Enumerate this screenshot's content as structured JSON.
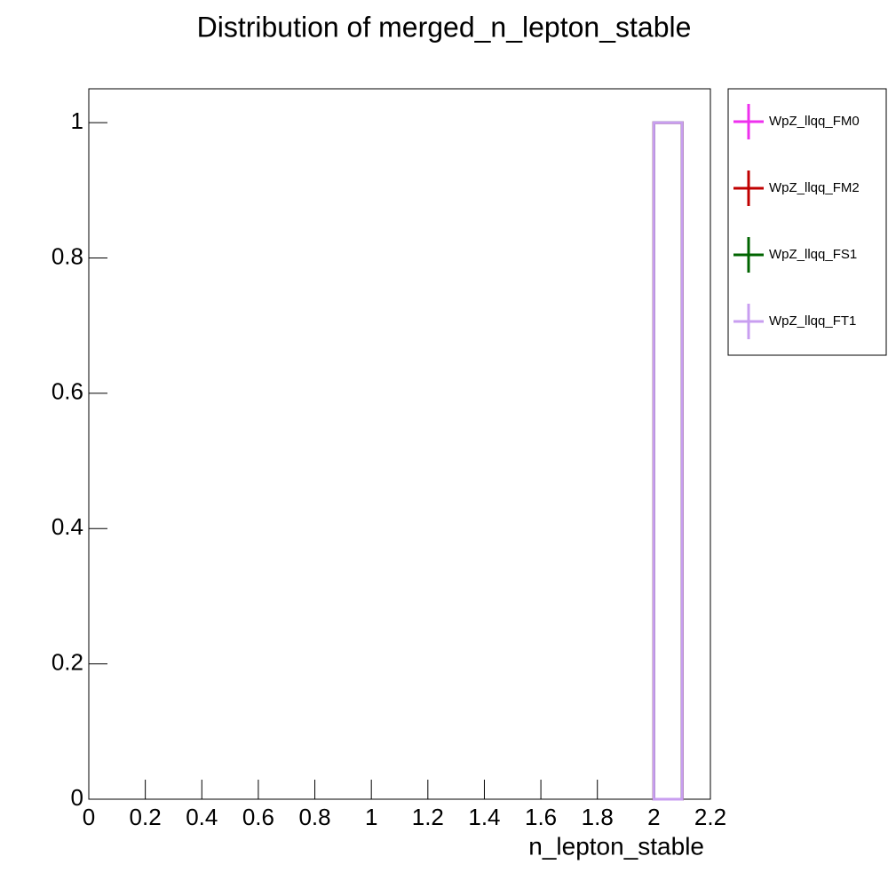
{
  "chart_data": {
    "type": "histogram",
    "title": "Distribution of merged_n_lepton_stable",
    "x_label": "n_lepton_stable",
    "bins": [
      0,
      0.1,
      0.2,
      0.3,
      0.4,
      0.5,
      0.6,
      0.7,
      0.8,
      0.9,
      1.0,
      1.1,
      1.2,
      1.3,
      1.4,
      1.5,
      1.6,
      1.7,
      1.8,
      1.9,
      2.0,
      2.1,
      2.2
    ],
    "series": [
      {
        "name": "WpZ_llqq_FM0",
        "color": "#ee30ee",
        "values": [
          0,
          0,
          0,
          0,
          0,
          0,
          0,
          0,
          0,
          0,
          0,
          0,
          0,
          0,
          0,
          0,
          0,
          0,
          0,
          0,
          1,
          0
        ]
      },
      {
        "name": "WpZ_llqq_FM2",
        "color": "#c00000",
        "values": [
          0,
          0,
          0,
          0,
          0,
          0,
          0,
          0,
          0,
          0,
          0,
          0,
          0,
          0,
          0,
          0,
          0,
          0,
          0,
          0,
          1,
          0
        ]
      },
      {
        "name": "WpZ_llqq_FS1",
        "color": "#006400",
        "values": [
          0,
          0,
          0,
          0,
          0,
          0,
          0,
          0,
          0,
          0,
          0,
          0,
          0,
          0,
          0,
          0,
          0,
          0,
          0,
          0,
          1,
          0
        ]
      },
      {
        "name": "WpZ_llqq_FT1",
        "color": "#c89ef0",
        "values": [
          0,
          0,
          0,
          0,
          0,
          0,
          0,
          0,
          0,
          0,
          0,
          0,
          0,
          0,
          0,
          0,
          0,
          0,
          0,
          0,
          1,
          0
        ]
      }
    ],
    "xlim": [
      0,
      2.2
    ],
    "ylim": [
      0,
      1.05
    ],
    "xticks": [
      0,
      0.2,
      0.4,
      0.6,
      0.8,
      1,
      1.2,
      1.4,
      1.6,
      1.8,
      2,
      2.2
    ],
    "yticks": [
      0,
      0.2,
      0.4,
      0.6,
      0.8,
      1
    ],
    "legend": "outside-right"
  }
}
